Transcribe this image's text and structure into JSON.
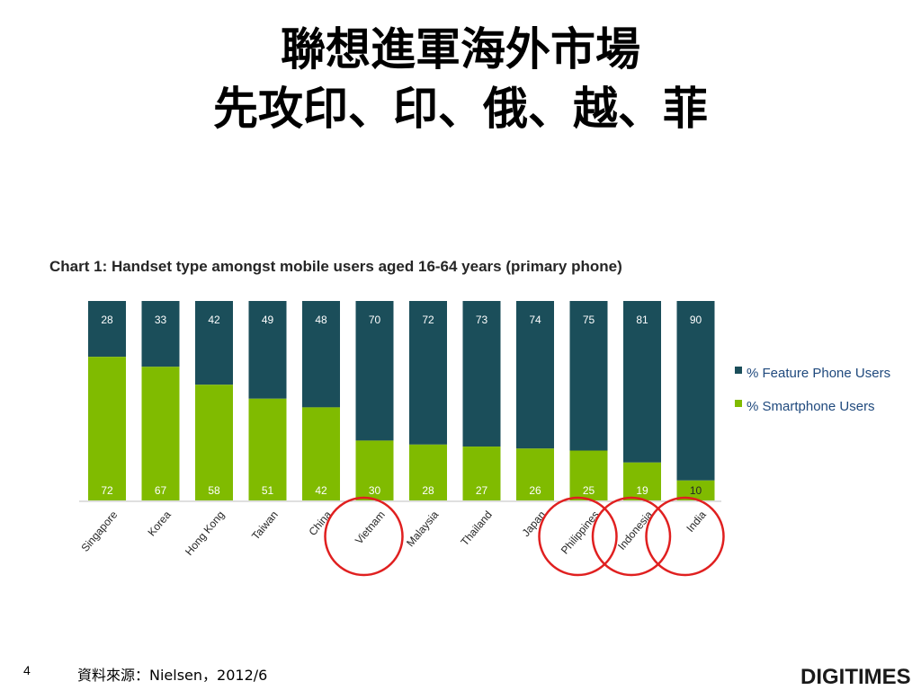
{
  "slide": {
    "title_line1": "聯想進軍海外市場",
    "title_line2": "先攻印、印、俄、越、菲",
    "page_number": "4",
    "source": "資料來源：Nielsen，2012/6",
    "logo_text": "DIGITIMES"
  },
  "colors": {
    "feature": "#1b4e5a",
    "smartphone": "#80bb00",
    "highlight_circle": "#e02020"
  },
  "chart_data": {
    "type": "bar",
    "stacked": true,
    "title": "Chart 1: Handset type amongst mobile users aged 16-64 years (primary phone)",
    "categories": [
      "Singapore",
      "Korea",
      "Hong Kong",
      "Taiwan",
      "China",
      "Vietnam",
      "Malaysia",
      "Thailand",
      "Japan",
      "Philippines",
      "Indonesia",
      "India"
    ],
    "series": [
      {
        "name": "% Smartphone Users",
        "color": "#80bb00",
        "values": [
          72,
          67,
          58,
          51,
          42,
          30,
          28,
          27,
          26,
          25,
          19,
          10
        ]
      },
      {
        "name": "% Feature Phone Users",
        "color": "#1b4e5a",
        "values": [
          28,
          33,
          42,
          49,
          48,
          70,
          72,
          73,
          74,
          75,
          81,
          90
        ]
      }
    ],
    "legend": [
      "% Feature Phone Users",
      "% Smartphone Users"
    ],
    "legend_position": "right",
    "ylim": [
      0,
      100
    ],
    "grid": false,
    "highlighted_categories": [
      "Vietnam",
      "Philippines",
      "Indonesia",
      "India"
    ]
  }
}
